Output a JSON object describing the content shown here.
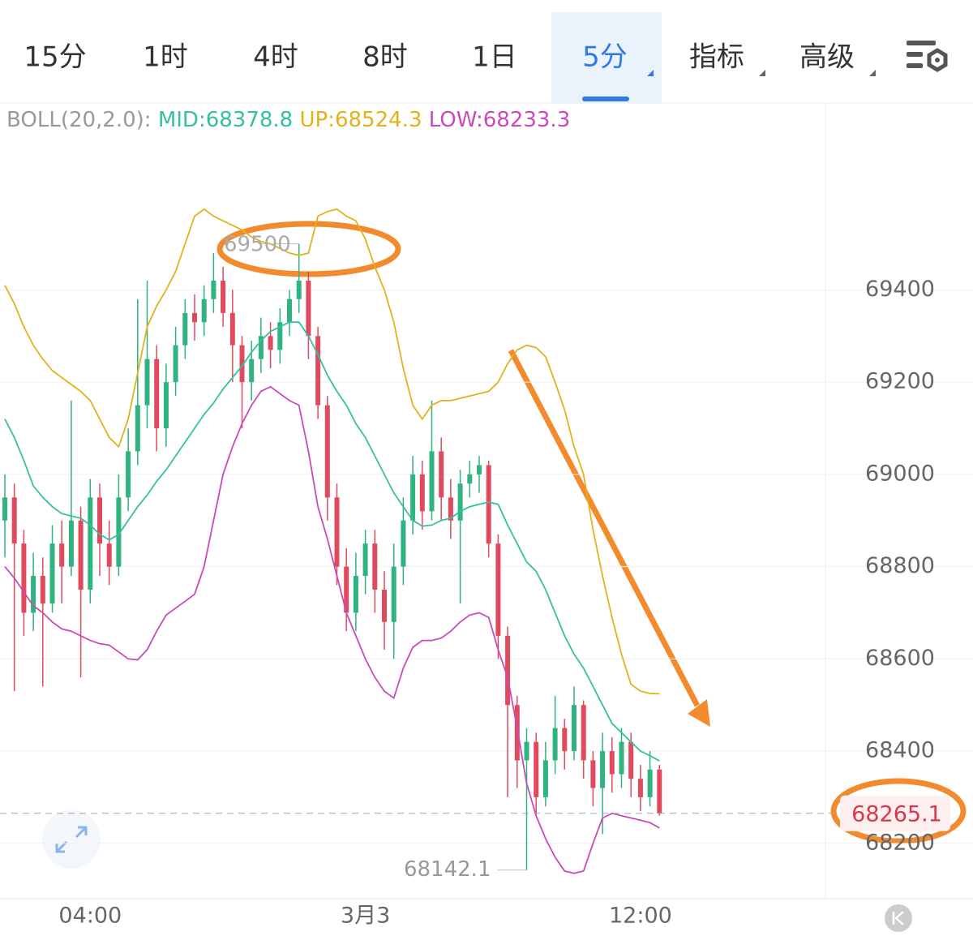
{
  "tabs": [
    "15分",
    "1时",
    "4时",
    "8时",
    "1日",
    "5分",
    "指标",
    "高级"
  ],
  "active_tab": 5,
  "chart_data": {
    "type": "candlestick",
    "indicator": "BOLL(20,2.0):",
    "categories": [
      null,
      null,
      null,
      null,
      null,
      null,
      null,
      null,
      null,
      "04:00",
      null,
      null,
      null,
      null,
      null,
      null,
      null,
      null,
      null,
      null,
      null,
      null,
      null,
      null,
      null,
      null,
      null,
      null,
      null,
      null,
      null,
      null,
      null,
      null,
      null,
      null,
      null,
      null,
      "3月3",
      null,
      null,
      null,
      null,
      null,
      null,
      null,
      null,
      null,
      null,
      null,
      null,
      null,
      null,
      null,
      null,
      null,
      null,
      null,
      null,
      null,
      null,
      null,
      null,
      null,
      null,
      null,
      null,
      "12:00",
      null,
      null
    ],
    "open": [
      68900,
      68950,
      68850,
      68700,
      68780,
      68720,
      68850,
      68800,
      68900,
      68750,
      68950,
      68850,
      68800,
      68950,
      69050,
      69150,
      69250,
      69100,
      69200,
      69280,
      69350,
      69330,
      69380,
      69420,
      69350,
      69280,
      69200,
      69250,
      69300,
      69270,
      69330,
      69380,
      69420,
      69300,
      69150,
      68950,
      68800,
      68700,
      68780,
      68850,
      68750,
      68680,
      68800,
      68900,
      69000,
      68920,
      69050,
      68950,
      68900,
      68980,
      69000,
      69020,
      68850,
      68650,
      68500,
      68380,
      68420,
      68300,
      68380,
      68450,
      68400,
      68500,
      68380,
      68320,
      68400,
      68350,
      68420,
      68340,
      68300,
      68360
    ],
    "high": [
      69000,
      68980,
      68880,
      68830,
      68820,
      68890,
      68900,
      69160,
      68930,
      68990,
      68980,
      68900,
      69000,
      69100,
      69380,
      69420,
      69280,
      69240,
      69320,
      69380,
      69390,
      69410,
      69480,
      69450,
      69400,
      69300,
      69290,
      69340,
      69330,
      69360,
      69400,
      69500,
      69440,
      69320,
      69170,
      68980,
      68840,
      68830,
      68880,
      68880,
      68790,
      68850,
      68950,
      69040,
      69030,
      69160,
      69080,
      68990,
      69010,
      69030,
      69040,
      69030,
      68870,
      68670,
      68520,
      68450,
      68440,
      68420,
      68520,
      68470,
      68540,
      68510,
      68400,
      68440,
      68430,
      68450,
      68440,
      68370,
      68400,
      68370
    ],
    "low": [
      68820,
      68530,
      68650,
      68660,
      68540,
      68700,
      68720,
      68780,
      68560,
      68720,
      68780,
      68760,
      68780,
      68920,
      69020,
      69100,
      69050,
      69060,
      69170,
      69250,
      69290,
      69300,
      69350,
      69320,
      69200,
      69100,
      69160,
      69220,
      69230,
      69240,
      69300,
      69350,
      69250,
      69120,
      68900,
      68760,
      68660,
      68660,
      68740,
      68700,
      68620,
      68600,
      68760,
      68870,
      68880,
      68900,
      68900,
      68860,
      68720,
      68950,
      68960,
      68820,
      68600,
      68300,
      68320,
      68142.1,
      68260,
      68280,
      68350,
      68360,
      68380,
      68340,
      68280,
      68220,
      68310,
      68320,
      68300,
      68270,
      68280,
      68260
    ],
    "close": [
      68950,
      68850,
      68700,
      68780,
      68720,
      68850,
      68800,
      68900,
      68750,
      68950,
      68850,
      68800,
      68950,
      69050,
      69150,
      69250,
      69100,
      69200,
      69280,
      69350,
      69330,
      69380,
      69420,
      69350,
      69280,
      69200,
      69250,
      69300,
      69270,
      69330,
      69380,
      69420,
      69300,
      69150,
      68950,
      68800,
      68700,
      68780,
      68850,
      68750,
      68680,
      68800,
      68900,
      69000,
      68920,
      69050,
      68950,
      68900,
      68980,
      69000,
      69020,
      68850,
      68650,
      68500,
      68380,
      68420,
      68300,
      68380,
      68450,
      68400,
      68500,
      68380,
      68320,
      68400,
      68350,
      68420,
      68340,
      68300,
      68360,
      68265.1
    ],
    "up_color": "#2fb37f",
    "down_color": "#e04a5e",
    "bands": [
      {
        "name": "MID:68378.8",
        "color": "#35bfa3",
        "values": [
          69120,
          69080,
          69030,
          68975,
          68950,
          68930,
          68915,
          68910,
          68905,
          68890,
          68870,
          68858,
          68870,
          68900,
          68930,
          68955,
          68985,
          69010,
          69040,
          69070,
          69100,
          69130,
          69155,
          69185,
          69210,
          69235,
          69265,
          69290,
          69310,
          69320,
          69330,
          69330,
          69300,
          69260,
          69215,
          69180,
          69150,
          69110,
          69080,
          69040,
          69000,
          68960,
          68930,
          68900,
          68888,
          68890,
          68900,
          68905,
          68920,
          68930,
          68935,
          68940,
          68935,
          68890,
          68850,
          68810,
          68790,
          68750,
          68700,
          68650,
          68610,
          68580,
          68540,
          68500,
          68460,
          68440,
          68420,
          68400,
          68390,
          68378.8
        ]
      },
      {
        "name": "UP:68524.3",
        "color": "#e2b21c",
        "values": [
          69410,
          69370,
          69320,
          69280,
          69250,
          69225,
          69210,
          69195,
          69180,
          69160,
          69120,
          69080,
          69060,
          69120,
          69220,
          69320,
          69365,
          69400,
          69440,
          69500,
          69560,
          69575,
          69560,
          69550,
          69540,
          69530,
          69515,
          69505,
          69500,
          69490,
          69480,
          69475,
          69480,
          69560,
          69570,
          69575,
          69560,
          69550,
          69510,
          69450,
          69400,
          69330,
          69230,
          69150,
          69120,
          69150,
          69160,
          69160,
          69165,
          69170,
          69175,
          69180,
          69200,
          69240,
          69270,
          69280,
          69275,
          69255,
          69200,
          69140,
          69060,
          69000,
          68880,
          68780,
          68690,
          68610,
          68545,
          68530,
          68525,
          68524.3
        ]
      },
      {
        "name": "LOW:68233.3",
        "color": "#c94bb8",
        "values": [
          68800,
          68775,
          68745,
          68715,
          68700,
          68680,
          68665,
          68660,
          68650,
          68640,
          68633,
          68630,
          68615,
          68600,
          68598,
          68620,
          68660,
          68695,
          68710,
          68725,
          68740,
          68800,
          68900,
          69000,
          69060,
          69110,
          69150,
          69180,
          69190,
          69175,
          69160,
          69150,
          69050,
          68930,
          68860,
          68780,
          68700,
          68650,
          68600,
          68560,
          68530,
          68515,
          68580,
          68625,
          68640,
          68640,
          68645,
          68660,
          68680,
          68695,
          68700,
          68690,
          68620,
          68560,
          68450,
          68330,
          68260,
          68210,
          68170,
          68140,
          68135,
          68140,
          68200,
          68255,
          68265,
          68260,
          68255,
          68250,
          68245,
          68233.3
        ]
      }
    ],
    "ylim": [
      68080,
      69800
    ],
    "yticks": [
      68200,
      68400,
      68600,
      68800,
      69000,
      69200,
      69400
    ],
    "grid": true
  }
}
